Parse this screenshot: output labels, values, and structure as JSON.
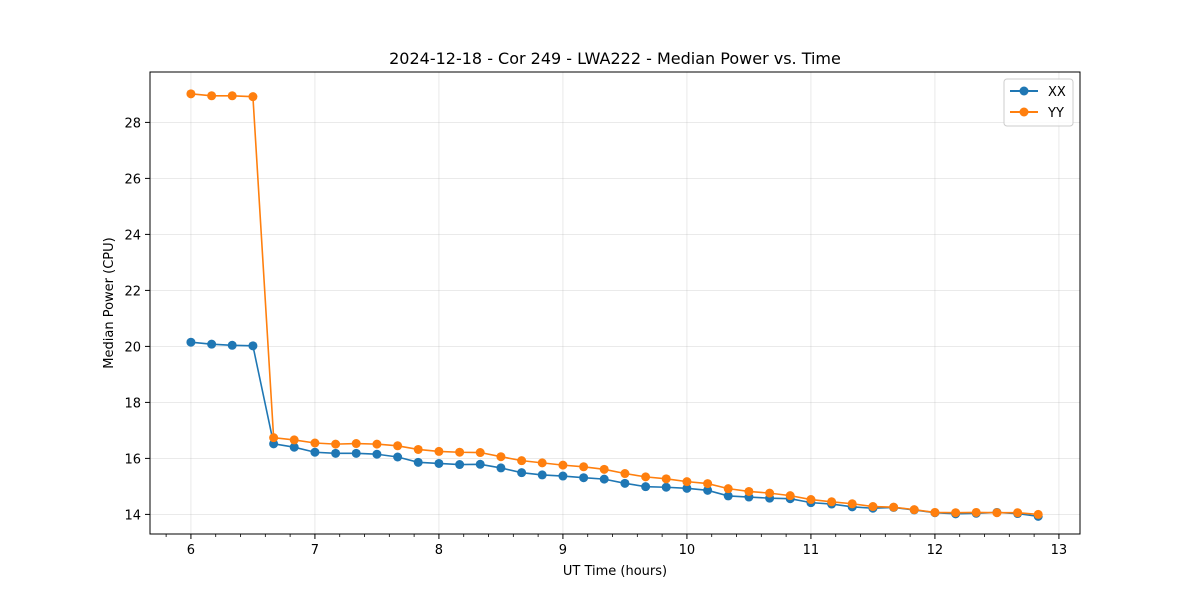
{
  "chart_data": {
    "type": "line",
    "title": "2024-12-18 - Cor 249 - LWA222 - Median Power vs. Time",
    "xlabel": "UT Time (hours)",
    "ylabel": "Median Power (CPU)",
    "xlim": [
      5.67,
      13.17
    ],
    "ylim": [
      13.3,
      29.8
    ],
    "xticks": [
      "6",
      "7",
      "8",
      "9",
      "10",
      "11",
      "12",
      "13"
    ],
    "yticks": [
      "14",
      "16",
      "18",
      "20",
      "22",
      "24",
      "26",
      "28"
    ],
    "grid": true,
    "legend_position": "top-right",
    "x": [
      6.0,
      6.167,
      6.333,
      6.5,
      6.667,
      6.833,
      7.0,
      7.167,
      7.333,
      7.5,
      7.667,
      7.833,
      8.0,
      8.167,
      8.333,
      8.5,
      8.667,
      8.833,
      9.0,
      9.167,
      9.333,
      9.5,
      9.667,
      9.833,
      10.0,
      10.167,
      10.333,
      10.5,
      10.667,
      10.833,
      11.0,
      11.167,
      11.333,
      11.5,
      11.667,
      11.833,
      12.0,
      12.167,
      12.333,
      12.5,
      12.667,
      12.833
    ],
    "series": [
      {
        "name": "XX",
        "color": "#1f77b4",
        "values": [
          20.15,
          20.08,
          20.04,
          20.02,
          16.52,
          16.4,
          16.22,
          16.18,
          16.18,
          16.15,
          16.05,
          15.86,
          15.82,
          15.78,
          15.79,
          15.66,
          15.49,
          15.41,
          15.37,
          15.31,
          15.26,
          15.11,
          14.99,
          14.97,
          14.93,
          14.86,
          14.66,
          14.62,
          14.58,
          14.56,
          14.42,
          14.37,
          14.27,
          14.22,
          14.25,
          14.16,
          14.06,
          14.02,
          14.04,
          14.07,
          14.03,
          13.93
        ]
      },
      {
        "name": "YY",
        "color": "#ff7f0e",
        "values": [
          29.02,
          28.95,
          28.95,
          28.92,
          16.74,
          16.66,
          16.55,
          16.51,
          16.53,
          16.51,
          16.45,
          16.32,
          16.25,
          16.22,
          16.21,
          16.06,
          15.92,
          15.84,
          15.76,
          15.7,
          15.61,
          15.46,
          15.34,
          15.27,
          15.17,
          15.1,
          14.92,
          14.82,
          14.76,
          14.67,
          14.53,
          14.45,
          14.38,
          14.28,
          14.26,
          14.17,
          14.07,
          14.06,
          14.07,
          14.06,
          14.06,
          14.0
        ]
      }
    ]
  }
}
